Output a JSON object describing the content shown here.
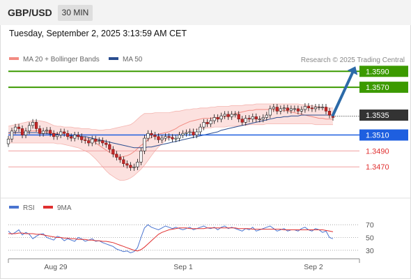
{
  "header": {
    "symbol": "GBP/USD",
    "timeframe": "30 MIN"
  },
  "datetime": "Tuesday, September 2, 2025 3:13:59 AM CET",
  "copyright": "Research © 2025 Trading Central",
  "colors": {
    "bollinger": "#f28b82",
    "ma50": "#2a4d8f",
    "support": "#1e5fe0",
    "target": "#3c9a00",
    "current": "#333333",
    "red_level": "#e03030",
    "rsi": "#4a74d0",
    "rsi_ma": "#e03030"
  },
  "chart_data": [
    {
      "type": "line",
      "title": "GBP/USD 30 MIN",
      "legend": [
        {
          "name": "MA 20 + Bollinger Bands",
          "color": "#f28b82"
        },
        {
          "name": "MA 50",
          "color": "#2a4d8f"
        }
      ],
      "legend_placement": "top-left",
      "x_ticks": [
        "Aug 29",
        "Sep 1",
        "Sep 2"
      ],
      "ylim": [
        1.3436,
        1.3606
      ],
      "price": [
        1.3505,
        1.3515,
        1.352,
        1.3518,
        1.351,
        1.3515,
        1.3522,
        1.3526,
        1.3518,
        1.3512,
        1.3515,
        1.3516,
        1.3512,
        1.3508,
        1.351,
        1.3514,
        1.3512,
        1.3508,
        1.3506,
        1.351,
        1.3508,
        1.3504,
        1.3503,
        1.35,
        1.3505,
        1.3502,
        1.3503,
        1.35,
        1.3498,
        1.3492,
        1.3486,
        1.3482,
        1.3479,
        1.3474,
        1.3472,
        1.3469,
        1.347,
        1.3476,
        1.349,
        1.3506,
        1.3512,
        1.351,
        1.3508,
        1.3504,
        1.3506,
        1.3508,
        1.3507,
        1.3505,
        1.3506,
        1.351,
        1.3512,
        1.3513,
        1.3514,
        1.351,
        1.3514,
        1.352,
        1.3526,
        1.3524,
        1.3528,
        1.3532,
        1.353,
        1.3534,
        1.3536,
        1.3533,
        1.3536,
        1.3536,
        1.353,
        1.3526,
        1.3531,
        1.353,
        1.3533,
        1.353,
        1.353,
        1.3532,
        1.3535,
        1.3543,
        1.3545,
        1.354,
        1.3543,
        1.3544,
        1.3541,
        1.3543,
        1.3543,
        1.354,
        1.3542,
        1.3546,
        1.3544,
        1.3543,
        1.3545,
        1.3545,
        1.3545,
        1.354,
        1.3535,
        1.3532
      ],
      "ma20": [
        1.3512,
        1.3512,
        1.3513,
        1.3513,
        1.3513,
        1.3514,
        1.3515,
        1.3515,
        1.3515,
        1.3515,
        1.3514,
        1.3514,
        1.3513,
        1.3512,
        1.3512,
        1.3511,
        1.351,
        1.351,
        1.3509,
        1.3509,
        1.3508,
        1.3507,
        1.3506,
        1.3505,
        1.3503,
        1.35,
        1.3497,
        1.3494,
        1.3491,
        1.3488,
        1.3486,
        1.3484,
        1.3483,
        1.3483,
        1.3484,
        1.3486,
        1.3489,
        1.3493,
        1.3497,
        1.35,
        1.3504,
        1.3507,
        1.3509,
        1.3511,
        1.3512,
        1.3513,
        1.3514,
        1.3516,
        1.3518,
        1.3521,
        1.3523,
        1.3525,
        1.3527,
        1.3528,
        1.3529,
        1.353,
        1.3531,
        1.3531,
        1.3531,
        1.3532,
        1.3532,
        1.3532,
        1.3533,
        1.3534,
        1.3535,
        1.3537,
        1.3538,
        1.3539,
        1.354,
        1.3541,
        1.3541,
        1.3542,
        1.3542,
        1.3542,
        1.3542,
        1.3542,
        1.3542,
        1.3541,
        1.3541,
        1.3541,
        1.354,
        1.3539,
        1.3538,
        1.3537,
        1.3536,
        1.3535,
        1.3534,
        1.3533,
        1.3532,
        1.3531,
        1.3531,
        1.353,
        1.353,
        1.353
      ],
      "bb_upper": [
        1.3521,
        1.3522,
        1.3523,
        1.3524,
        1.3525,
        1.3526,
        1.3527,
        1.3528,
        1.3528,
        1.3528,
        1.3527,
        1.3526,
        1.3524,
        1.3522,
        1.3521,
        1.3521,
        1.352,
        1.352,
        1.352,
        1.3519,
        1.3519,
        1.3518,
        1.3518,
        1.3518,
        1.3517,
        1.3517,
        1.3516,
        1.3516,
        1.3517,
        1.3517,
        1.3518,
        1.3519,
        1.352,
        1.3521,
        1.3522,
        1.3523,
        1.3526,
        1.353,
        1.3534,
        1.3537,
        1.3537,
        1.3537,
        1.3538,
        1.3538,
        1.3538,
        1.3538,
        1.3538,
        1.3539,
        1.354,
        1.354,
        1.3541,
        1.3542,
        1.3542,
        1.3543,
        1.3543,
        1.3544,
        1.3544,
        1.3544,
        1.3545,
        1.3545,
        1.3546,
        1.3546,
        1.3546,
        1.3546,
        1.3547,
        1.3547,
        1.3547,
        1.3547,
        1.3548,
        1.3548,
        1.3548,
        1.3549,
        1.3549,
        1.3549,
        1.3549,
        1.3549,
        1.3549,
        1.3549,
        1.3549,
        1.3549,
        1.3549,
        1.3549,
        1.3549,
        1.3549,
        1.3548,
        1.3548,
        1.3547,
        1.3547,
        1.3546,
        1.3546,
        1.3545,
        1.3545,
        1.3544,
        1.3544
      ],
      "bb_lower": [
        1.35,
        1.35,
        1.35,
        1.35,
        1.35,
        1.35,
        1.35,
        1.35,
        1.35,
        1.35,
        1.35,
        1.35,
        1.35,
        1.35,
        1.3499,
        1.3499,
        1.3498,
        1.3497,
        1.3496,
        1.3495,
        1.3494,
        1.3492,
        1.349,
        1.3488,
        1.3484,
        1.348,
        1.3475,
        1.347,
        1.3465,
        1.3461,
        1.3458,
        1.3455,
        1.3453,
        1.3453,
        1.3454,
        1.3456,
        1.3459,
        1.3463,
        1.3467,
        1.3472,
        1.3478,
        1.3484,
        1.349,
        1.3495,
        1.3499,
        1.3503,
        1.3506,
        1.3508,
        1.351,
        1.3512,
        1.3513,
        1.3514,
        1.3515,
        1.3516,
        1.3517,
        1.3518,
        1.3518,
        1.3519,
        1.3519,
        1.352,
        1.352,
        1.352,
        1.352,
        1.3521,
        1.3521,
        1.3521,
        1.3522,
        1.3522,
        1.3522,
        1.3523,
        1.3523,
        1.3523,
        1.3523,
        1.3523,
        1.3524,
        1.3524,
        1.3524,
        1.3524,
        1.3524,
        1.3524,
        1.3524,
        1.3524,
        1.3524,
        1.3524,
        1.3524,
        1.3524,
        1.3524,
        1.3524,
        1.3523,
        1.3523,
        1.3523,
        1.3523,
        1.3523,
        1.3523
      ],
      "ma50": [
        1.3513,
        1.3513,
        1.3513,
        1.3513,
        1.3513,
        1.3513,
        1.3513,
        1.3513,
        1.3513,
        1.3512,
        1.3512,
        1.3512,
        1.3511,
        1.3511,
        1.3511,
        1.351,
        1.351,
        1.351,
        1.3509,
        1.3509,
        1.3509,
        1.3508,
        1.3508,
        1.3507,
        1.3506,
        1.3505,
        1.3504,
        1.3503,
        1.3502,
        1.3501,
        1.35,
        1.3499,
        1.3498,
        1.3497,
        1.3496,
        1.3495,
        1.3494,
        1.3494,
        1.3494,
        1.3494,
        1.3495,
        1.3495,
        1.3496,
        1.3497,
        1.3498,
        1.3499,
        1.35,
        1.3501,
        1.3502,
        1.3503,
        1.3504,
        1.3505,
        1.3506,
        1.3507,
        1.3508,
        1.3509,
        1.351,
        1.3511,
        1.3512,
        1.3513,
        1.3514,
        1.3516,
        1.3517,
        1.3518,
        1.3519,
        1.352,
        1.3521,
        1.3522,
        1.3523,
        1.3524,
        1.3525,
        1.3526,
        1.3527,
        1.3528,
        1.3529,
        1.353,
        1.3531,
        1.3532,
        1.3532,
        1.3533,
        1.3533,
        1.3534,
        1.3534,
        1.3534,
        1.3535,
        1.3535,
        1.3535,
        1.3535,
        1.3535,
        1.3535,
        1.3535,
        1.3535,
        1.3535,
        1.3535
      ],
      "levels": [
        {
          "value": 1.359,
          "label": "1.3590",
          "kind": "target"
        },
        {
          "value": 1.357,
          "label": "1.3570",
          "kind": "target"
        },
        {
          "value": 1.3535,
          "label": "1.3535",
          "kind": "current"
        },
        {
          "value": 1.351,
          "label": "1.3510",
          "kind": "support"
        },
        {
          "value": 1.349,
          "label": "1.3490",
          "kind": "red"
        },
        {
          "value": 1.347,
          "label": "1.3470",
          "kind": "red"
        }
      ],
      "arrow": {
        "from": 1.3535,
        "to": 1.359,
        "direction": "up"
      }
    },
    {
      "type": "line",
      "title": "RSI",
      "legend": [
        {
          "name": "RSI",
          "color": "#4a74d0"
        },
        {
          "name": "9MA",
          "color": "#e03030"
        }
      ],
      "legend_placement": "top-left",
      "ylim": [
        20,
        80
      ],
      "y_ticks": [
        "70",
        "50",
        "30"
      ],
      "rsi": [
        60,
        55,
        58,
        62,
        54,
        58,
        55,
        48,
        52,
        55,
        56,
        50,
        48,
        46,
        52,
        50,
        45,
        48,
        46,
        44,
        50,
        48,
        44,
        46,
        48,
        44,
        45,
        42,
        40,
        38,
        36,
        32,
        30,
        28,
        29,
        26,
        28,
        34,
        50,
        65,
        70,
        66,
        64,
        62,
        65,
        68,
        66,
        64,
        66,
        64,
        62,
        64,
        66,
        62,
        64,
        66,
        68,
        65,
        64,
        66,
        62,
        66,
        68,
        64,
        66,
        64,
        62,
        60,
        64,
        62,
        66,
        60,
        62,
        64,
        66,
        68,
        64,
        60,
        62,
        64,
        60,
        62,
        62,
        60,
        64,
        66,
        62,
        60,
        64,
        62,
        58,
        60,
        50,
        48
      ],
      "rsi_ma": [
        56,
        56,
        56,
        57,
        57,
        56,
        56,
        56,
        55,
        55,
        54,
        53,
        52,
        51,
        50,
        50,
        49,
        49,
        48,
        48,
        47,
        47,
        47,
        46,
        46,
        45,
        45,
        44,
        44,
        43,
        42,
        40,
        38,
        36,
        34,
        32,
        30,
        29,
        31,
        35,
        40,
        45,
        50,
        55,
        58,
        60,
        62,
        63,
        64,
        65,
        65,
        65,
        64,
        64,
        64,
        64,
        64,
        65,
        65,
        65,
        65,
        65,
        65,
        65,
        65,
        65,
        64,
        64,
        64,
        64,
        63,
        63,
        63,
        63,
        63,
        63,
        63,
        63,
        63,
        62,
        62,
        62,
        62,
        62,
        62,
        62,
        62,
        62,
        62,
        62,
        62,
        61,
        60,
        59
      ]
    }
  ]
}
